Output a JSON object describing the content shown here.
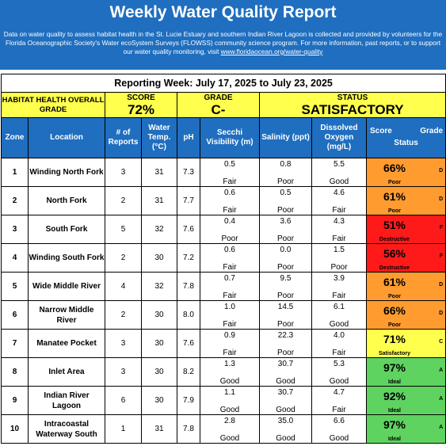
{
  "header": {
    "title": "Weekly Water Quality Report",
    "intro": "Data on water quality to assess habitat health in the St. Lucie Estuary and southern Indian River Lagoon is collected and provided by volunteers for the Florida Oceanographic Society's Water ecoSystem Surveys (FLOWSS) community science program.  For more information, past reports, or to support our water quality monitoring, visit",
    "link": "www.floridaocean.org/water-quality"
  },
  "week": "Reporting Week: July 17, 2025 to July 23, 2025",
  "summary": {
    "label": "HABITAT HEALTH OVERALL GRADE",
    "score_label": "SCORE",
    "score": "72%",
    "grade_label": "GRADE",
    "grade": "C-",
    "status_label": "STATUS",
    "status": "SATISFACTORY"
  },
  "columns": {
    "zone": "Zone",
    "location": "Location",
    "reports": "# of Reports",
    "temp": "Water Temp. (°C)",
    "ph": "pH",
    "secchi": "Secchi Visibility (m)",
    "salinity": "Salinity (ppt)",
    "oxygen": "Dissolved Oxygen (mg/L)",
    "score": "Score",
    "grade": "Grade",
    "status": "Status"
  },
  "colors": {
    "header_blue": "#1f6ebf",
    "summary_yellow": "#ffff4d",
    "poor": "#ff9b2f",
    "destructive": "#ff1a1a",
    "satisfactory": "#ffff4d",
    "ideal": "#5fd35f"
  },
  "rows": [
    {
      "zone": "1",
      "location": "Winding North Fork",
      "reports": "3",
      "temp": "31",
      "ph": "7.3",
      "secchi": "0.5",
      "secchi_rating": "Fair",
      "salinity": "0.8",
      "salinity_rating": "Poor",
      "oxygen": "5.5",
      "oxygen_rating": "Good",
      "score": "66%",
      "grade": "D",
      "status": "Poor",
      "color": "#ff9b2f"
    },
    {
      "zone": "2",
      "location": "North Fork",
      "reports": "2",
      "temp": "31",
      "ph": "7.7",
      "secchi": "0.6",
      "secchi_rating": "Fair",
      "salinity": "0.5",
      "salinity_rating": "Poor",
      "oxygen": "4.6",
      "oxygen_rating": "Fair",
      "score": "61%",
      "grade": "D",
      "status": "Poor",
      "color": "#ff9b2f"
    },
    {
      "zone": "3",
      "location": "South Fork",
      "reports": "5",
      "temp": "32",
      "ph": "7.6",
      "secchi": "0.4",
      "secchi_rating": "Poor",
      "salinity": "3.6",
      "salinity_rating": "Poor",
      "oxygen": "4.3",
      "oxygen_rating": "Fair",
      "score": "51%",
      "grade": "F",
      "status": "Destructive",
      "color": "#ff1a1a"
    },
    {
      "zone": "4",
      "location": "Winding South Fork",
      "reports": "2",
      "temp": "30",
      "ph": "7.2",
      "secchi": "0.6",
      "secchi_rating": "Fair",
      "salinity": "0.0",
      "salinity_rating": "Poor",
      "oxygen": "1.5",
      "oxygen_rating": "Poor",
      "score": "56%",
      "grade": "F",
      "status": "Destructive",
      "color": "#ff1a1a"
    },
    {
      "zone": "5",
      "location": "Wide Middle River",
      "reports": "4",
      "temp": "32",
      "ph": "7.8",
      "secchi": "0.7",
      "secchi_rating": "Fair",
      "salinity": "9.5",
      "salinity_rating": "Poor",
      "oxygen": "3.9",
      "oxygen_rating": "Fair",
      "score": "61%",
      "grade": "D",
      "status": "Poor",
      "color": "#ff9b2f"
    },
    {
      "zone": "6",
      "location": "Narrow Middle River",
      "reports": "2",
      "temp": "30",
      "ph": "8.0",
      "secchi": "1.0",
      "secchi_rating": "Fair",
      "salinity": "14.5",
      "salinity_rating": "Poor",
      "oxygen": "6.1",
      "oxygen_rating": "Good",
      "score": "66%",
      "grade": "D",
      "status": "Poor",
      "color": "#ff9b2f"
    },
    {
      "zone": "7",
      "location": "Manatee Pocket",
      "reports": "3",
      "temp": "30",
      "ph": "7.6",
      "secchi": "0.9",
      "secchi_rating": "Fair",
      "salinity": "22.3",
      "salinity_rating": "Poor",
      "oxygen": "4.0",
      "oxygen_rating": "Fair",
      "score": "71%",
      "grade": "C",
      "status": "Satisfactory",
      "color": "#ffff4d"
    },
    {
      "zone": "8",
      "location": "Inlet Area",
      "reports": "3",
      "temp": "30",
      "ph": "8.2",
      "secchi": "1.3",
      "secchi_rating": "Good",
      "salinity": "30.7",
      "salinity_rating": "Good",
      "oxygen": "5.3",
      "oxygen_rating": "Good",
      "score": "97%",
      "grade": "A",
      "status": "Ideal",
      "color": "#5fd35f"
    },
    {
      "zone": "9",
      "location": "Indian River Lagoon",
      "reports": "6",
      "temp": "30",
      "ph": "7.9",
      "secchi": "1.1",
      "secchi_rating": "Good",
      "salinity": "30.7",
      "salinity_rating": "Good",
      "oxygen": "4.7",
      "oxygen_rating": "Fair",
      "score": "92%",
      "grade": "A",
      "status": "Ideal",
      "color": "#5fd35f"
    },
    {
      "zone": "10",
      "location": "Intracoastal Waterway South",
      "reports": "1",
      "temp": "31",
      "ph": "7.8",
      "secchi": "2.8",
      "secchi_rating": "Good",
      "salinity": "35.0",
      "salinity_rating": "Good",
      "oxygen": "6.6",
      "oxygen_rating": "Good",
      "score": "97%",
      "grade": "A",
      "status": "Ideal",
      "color": "#5fd35f"
    }
  ]
}
